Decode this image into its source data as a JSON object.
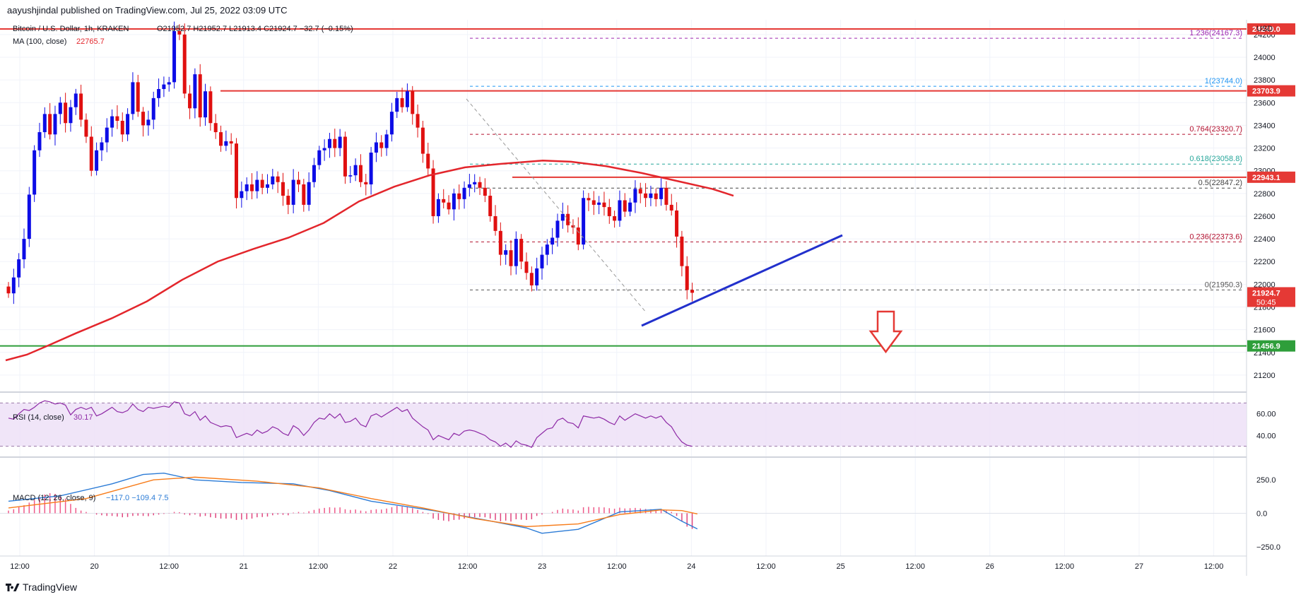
{
  "header": {
    "published": "aayushjindal published on TradingView.com, Jul 25, 2022 03:09 UTC"
  },
  "footer": {
    "brand": "TradingView"
  },
  "colors": {
    "up": "#0c0ce6",
    "down": "#e01010",
    "ma": "#e3262c",
    "rsi": "#8e2aa6",
    "macd": "#2b7bd6",
    "signal": "#f77c1a"
  },
  "chart_data": {
    "type": "candlestick",
    "title": "Bitcoin / U.S. Dollar, 1h, KRAKEN",
    "ohlc_text": "O21952.7 H21952.7 L21913.4 C21924.7 −32.7 (−0.15%)",
    "ma_label": "MA (100, close)",
    "ma_value": "22765.7",
    "currency": "USD",
    "ylim": [
      21050,
      24330
    ],
    "y_ticks": [
      21200,
      21400,
      21600,
      21800,
      22000,
      22200,
      22400,
      22600,
      22800,
      23000,
      23200,
      23400,
      23600,
      23800,
      24000,
      24200
    ],
    "x_ticks": [
      "12:00",
      "20",
      "12:00",
      "21",
      "12:00",
      "22",
      "12:00",
      "23",
      "12:00",
      "24",
      "12:00",
      "25",
      "12:00",
      "26",
      "12:00",
      "27",
      "12:00"
    ],
    "candles_close": [
      21920,
      22060,
      22220,
      22400,
      22790,
      23180,
      23340,
      23500,
      23320,
      23500,
      23600,
      23420,
      23560,
      23680,
      23450,
      23300,
      23000,
      23180,
      23250,
      23380,
      23480,
      23440,
      23320,
      23500,
      23780,
      23520,
      23400,
      23450,
      23640,
      23720,
      23760,
      23780,
      24230,
      24200,
      23680,
      23550,
      23850,
      23470,
      23700,
      23420,
      23340,
      23220,
      23260,
      23240,
      22760,
      22820,
      22880,
      22820,
      22920,
      22850,
      22880,
      22950,
      22900,
      22780,
      22700,
      22920,
      22880,
      22700,
      22900,
      23050,
      23180,
      23200,
      23280,
      23200,
      23300,
      22950,
      22960,
      23050,
      22900,
      22880,
      23160,
      23250,
      23200,
      23320,
      23520,
      23640,
      23560,
      23700,
      23500,
      23380,
      23150,
      23020,
      22600,
      22750,
      22720,
      22660,
      22800,
      22750,
      22850,
      22880,
      22900,
      22850,
      22780,
      22600,
      22470,
      22260,
      22300,
      22160,
      22400,
      22200,
      22100,
      21990,
      22140,
      22260,
      22350,
      22410,
      22560,
      22620,
      22520,
      22500,
      22350,
      22760,
      22740,
      22700,
      22720,
      22680,
      22600,
      22560,
      22740,
      22640,
      22720,
      22840,
      22800,
      22760,
      22800,
      22750,
      22850,
      22700,
      22650,
      22420,
      22160,
      21950,
      21925
    ],
    "ma100": [
      [
        0,
        21330
      ],
      [
        30,
        21380
      ],
      [
        60,
        21460
      ],
      [
        100,
        21570
      ],
      [
        150,
        21700
      ],
      [
        200,
        21850
      ],
      [
        250,
        22040
      ],
      [
        300,
        22200
      ],
      [
        350,
        22310
      ],
      [
        400,
        22410
      ],
      [
        450,
        22540
      ],
      [
        500,
        22730
      ],
      [
        550,
        22860
      ],
      [
        600,
        22960
      ],
      [
        650,
        23030
      ],
      [
        700,
        23060
      ],
      [
        760,
        23090
      ],
      [
        800,
        23080
      ],
      [
        850,
        23040
      ],
      [
        900,
        22980
      ],
      [
        950,
        22910
      ],
      [
        1000,
        22840
      ],
      [
        1030,
        22780
      ]
    ],
    "annotations": {
      "resistance_top": {
        "price": 24249.0,
        "label": "24249.0"
      },
      "resistance_1": {
        "price": 23703.9,
        "label": "23703.9"
      },
      "resistance_2": {
        "price": 22943.1,
        "label": "22943.1"
      },
      "support": {
        "price": 21456.9,
        "label": "21456.9"
      },
      "current": {
        "price": 21924.7,
        "label": "21924.7",
        "countdown": "50:45"
      },
      "fib": [
        {
          "price": 24167.3,
          "label": "1.236(24167.3)",
          "color": "#9c27b0"
        },
        {
          "price": 23744.0,
          "label": "1(23744.0)",
          "color": "#2196f3"
        },
        {
          "price": 23320.7,
          "label": "0.764(23320.7)",
          "color": "#b2102f"
        },
        {
          "price": 23058.8,
          "label": "0.618(23058.8)",
          "color": "#26a69a"
        },
        {
          "price": 22847.2,
          "label": "0.5(22847.2)",
          "color": "#444444"
        },
        {
          "price": 22373.6,
          "label": "0.236(22373.6)",
          "color": "#b2102f"
        },
        {
          "price": 21950.3,
          "label": "0(21950.3)",
          "color": "#555555"
        }
      ]
    },
    "rsi": {
      "label": "RSI (14, close)",
      "value": "30.17",
      "ticks": [
        "60.00",
        "40.00"
      ],
      "ylim": [
        20,
        80
      ],
      "band": [
        30,
        70
      ],
      "values": [
        56,
        55,
        60,
        64,
        63,
        66,
        70,
        72,
        71,
        69,
        70,
        68,
        59,
        64,
        66,
        64,
        66,
        58,
        60,
        63,
        66,
        62,
        61,
        63,
        69,
        64,
        62,
        66,
        65,
        66,
        67,
        66,
        71,
        70,
        60,
        58,
        62,
        54,
        58,
        52,
        50,
        48,
        49,
        48,
        38,
        40,
        42,
        40,
        45,
        42,
        44,
        48,
        46,
        42,
        40,
        49,
        46,
        40,
        45,
        52,
        56,
        55,
        60,
        56,
        60,
        52,
        53,
        56,
        50,
        48,
        58,
        60,
        57,
        60,
        63,
        66,
        62,
        64,
        56,
        52,
        48,
        45,
        36,
        40,
        38,
        36,
        42,
        40,
        44,
        45,
        44,
        42,
        40,
        36,
        34,
        30,
        33,
        29,
        35,
        32,
        31,
        29,
        38,
        42,
        46,
        47,
        54,
        56,
        52,
        51,
        47,
        58,
        57,
        56,
        57,
        55,
        52,
        50,
        58,
        54,
        57,
        60,
        58,
        56,
        58,
        56,
        58,
        52,
        48,
        40,
        34,
        31,
        30
      ]
    },
    "macd": {
      "label": "MACD (12, 26, close, 9)",
      "values_text": "−117.0  −109.4  7.5",
      "ticks": [
        "250.0",
        "0.0",
        "−250.0"
      ],
      "ylim": [
        -320,
        420
      ],
      "hist": [
        20,
        30,
        45,
        60,
        80,
        100,
        120,
        140,
        150,
        145,
        130,
        110,
        70,
        40,
        20,
        10,
        0,
        -10,
        -15,
        -20,
        -20,
        -25,
        -30,
        -28,
        -20,
        -18,
        -20,
        -22,
        -15,
        -10,
        -5,
        -2,
        10,
        8,
        -10,
        -15,
        -10,
        -25,
        -20,
        -30,
        -35,
        -40,
        -40,
        -38,
        -50,
        -48,
        -45,
        -40,
        -30,
        -28,
        -25,
        -15,
        -10,
        -12,
        -15,
        5,
        10,
        5,
        15,
        25,
        35,
        40,
        45,
        42,
        44,
        30,
        25,
        28,
        20,
        15,
        25,
        30,
        28,
        35,
        45,
        55,
        50,
        52,
        38,
        25,
        10,
        -5,
        -40,
        -50,
        -55,
        -60,
        -50,
        -48,
        -40,
        -35,
        -30,
        -28,
        -30,
        -40,
        -50,
        -60,
        -55,
        -62,
        -45,
        -48,
        -50,
        -45,
        -20,
        -10,
        0,
        10,
        25,
        35,
        30,
        28,
        20,
        45,
        48,
        45,
        46,
        44,
        38,
        34,
        42,
        36,
        38,
        40,
        36,
        32,
        30,
        28,
        30,
        20,
        10,
        -20,
        -60,
        -100,
        -117
      ],
      "macd_line": [
        [
          0,
          90
        ],
        [
          10,
          130
        ],
        [
          20,
          220
        ],
        [
          26,
          290
        ],
        [
          30,
          300
        ],
        [
          36,
          250
        ],
        [
          45,
          230
        ],
        [
          55,
          220
        ],
        [
          62,
          170
        ],
        [
          70,
          90
        ],
        [
          82,
          20
        ],
        [
          92,
          -50
        ],
        [
          100,
          -110
        ],
        [
          103,
          -150
        ],
        [
          110,
          -120
        ],
        [
          118,
          10
        ],
        [
          126,
          30
        ],
        [
          130,
          -60
        ],
        [
          133,
          -117
        ]
      ],
      "signal_line": [
        [
          0,
          40
        ],
        [
          15,
          110
        ],
        [
          28,
          250
        ],
        [
          36,
          270
        ],
        [
          48,
          240
        ],
        [
          60,
          190
        ],
        [
          70,
          110
        ],
        [
          80,
          40
        ],
        [
          90,
          -40
        ],
        [
          100,
          -100
        ],
        [
          110,
          -80
        ],
        [
          118,
          -10
        ],
        [
          126,
          25
        ],
        [
          130,
          20
        ],
        [
          133,
          -5
        ]
      ]
    }
  }
}
